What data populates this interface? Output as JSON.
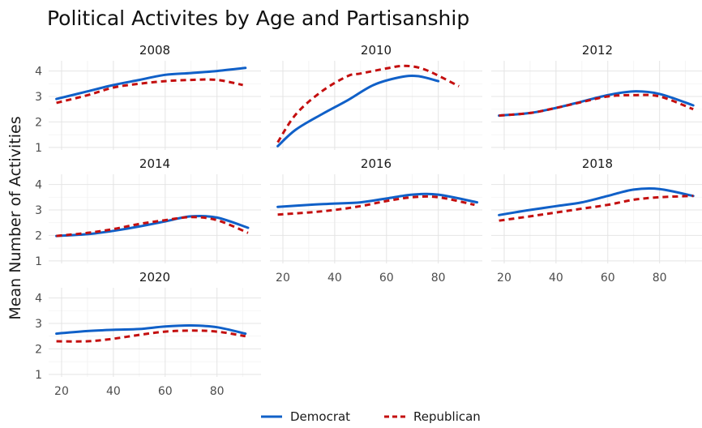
{
  "title": "Political Activites by Age and Partisanship",
  "colors": {
    "Democrat": "#1060c8",
    "Republican": "#c40f0f"
  },
  "chart_data": {
    "type": "line",
    "title": "Political Activites by Age and Partisanship",
    "xlabel": "",
    "ylabel": "Mean Number of Activities",
    "xlim": [
      15,
      97
    ],
    "ylim": [
      0.9,
      4.4
    ],
    "x_ticks": [
      20,
      40,
      60,
      80
    ],
    "y_ticks": [
      1,
      2,
      3,
      4
    ],
    "grid": true,
    "legend": "bottom",
    "legend_entries": [
      "Democrat",
      "Republican"
    ],
    "facets": [
      {
        "panel": "2008",
        "series": [
          {
            "name": "Democrat",
            "x": [
              18,
              30,
              40,
              50,
              60,
              70,
              80,
              91
            ],
            "y": [
              2.9,
              3.2,
              3.45,
              3.65,
              3.85,
              3.92,
              4.0,
              4.12
            ]
          },
          {
            "name": "Republican",
            "x": [
              18,
              30,
              40,
              50,
              60,
              70,
              80,
              90
            ],
            "y": [
              2.75,
              3.05,
              3.35,
              3.5,
              3.6,
              3.65,
              3.65,
              3.45
            ]
          }
        ]
      },
      {
        "panel": "2010",
        "series": [
          {
            "name": "Democrat",
            "x": [
              18,
              25,
              35,
              45,
              55,
              65,
              72,
              80
            ],
            "y": [
              1.05,
              1.7,
              2.3,
              2.85,
              3.45,
              3.75,
              3.8,
              3.6
            ]
          },
          {
            "name": "Republican",
            "x": [
              18,
              25,
              35,
              45,
              50,
              60,
              67,
              75,
              88
            ],
            "y": [
              1.2,
              2.3,
              3.2,
              3.8,
              3.9,
              4.1,
              4.2,
              4.05,
              3.4
            ]
          }
        ]
      },
      {
        "panel": "2012",
        "series": [
          {
            "name": "Democrat",
            "x": [
              18,
              30,
              40,
              50,
              60,
              70,
              80,
              93
            ],
            "y": [
              2.25,
              2.35,
              2.55,
              2.8,
              3.05,
              3.2,
              3.1,
              2.65
            ]
          },
          {
            "name": "Republican",
            "x": [
              18,
              30,
              40,
              50,
              60,
              70,
              80,
              93
            ],
            "y": [
              2.25,
              2.35,
              2.55,
              2.78,
              3.0,
              3.05,
              3.0,
              2.5
            ]
          }
        ]
      },
      {
        "panel": "2014",
        "series": [
          {
            "name": "Democrat",
            "x": [
              18,
              30,
              40,
              50,
              60,
              70,
              80,
              92
            ],
            "y": [
              1.98,
              2.05,
              2.18,
              2.35,
              2.55,
              2.75,
              2.7,
              2.3
            ]
          },
          {
            "name": "Republican",
            "x": [
              18,
              30,
              40,
              50,
              60,
              70,
              80,
              92
            ],
            "y": [
              1.98,
              2.1,
              2.25,
              2.45,
              2.6,
              2.72,
              2.6,
              2.1
            ]
          }
        ]
      },
      {
        "panel": "2016",
        "series": [
          {
            "name": "Democrat",
            "x": [
              18,
              30,
              40,
              50,
              60,
              70,
              80,
              95
            ],
            "y": [
              3.12,
              3.2,
              3.25,
              3.3,
              3.45,
              3.6,
              3.6,
              3.3
            ]
          },
          {
            "name": "Republican",
            "x": [
              18,
              30,
              40,
              50,
              60,
              70,
              80,
              94
            ],
            "y": [
              2.82,
              2.9,
              3.0,
              3.15,
              3.35,
              3.5,
              3.5,
              3.2
            ]
          }
        ]
      },
      {
        "panel": "2018",
        "series": [
          {
            "name": "Democrat",
            "x": [
              18,
              30,
              40,
              50,
              60,
              70,
              80,
              93
            ],
            "y": [
              2.8,
              3.0,
              3.15,
              3.3,
              3.55,
              3.8,
              3.82,
              3.55
            ]
          },
          {
            "name": "Republican",
            "x": [
              18,
              30,
              40,
              50,
              60,
              70,
              80,
              93
            ],
            "y": [
              2.58,
              2.75,
              2.9,
              3.05,
              3.2,
              3.4,
              3.5,
              3.55
            ]
          }
        ]
      },
      {
        "panel": "2020",
        "series": [
          {
            "name": "Democrat",
            "x": [
              18,
              30,
              40,
              50,
              60,
              70,
              80,
              91
            ],
            "y": [
              2.6,
              2.7,
              2.75,
              2.78,
              2.88,
              2.92,
              2.85,
              2.6
            ]
          },
          {
            "name": "Republican",
            "x": [
              18,
              30,
              40,
              50,
              60,
              70,
              80,
              91
            ],
            "y": [
              2.3,
              2.3,
              2.4,
              2.55,
              2.68,
              2.72,
              2.68,
              2.5
            ]
          }
        ]
      }
    ]
  }
}
